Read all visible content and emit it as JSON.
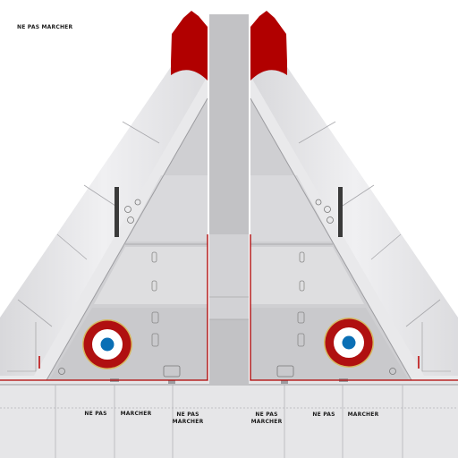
{
  "labels": {
    "corner": "NE PAS MARCHER",
    "left_ne_pas": "NE PAS",
    "left_marcher": "MARCHER",
    "left_block_line1": "NE PAS",
    "left_block_line2": "MARCHER",
    "right_block_line1": "NE PAS",
    "right_block_line2": "MARCHER",
    "right_ne_pas": "NE PAS",
    "right_marcher": "MARCHER"
  },
  "colors": {
    "background": "#ffffff",
    "wing": "#e8e8ea",
    "wing_shade": "#cfcfd2",
    "panel": "#c7c7ca",
    "fuselage": "#c2c2c5",
    "red_tip": "#b10000",
    "roundel_blue": "#0a6fb5",
    "roundel_white": "#ffffff",
    "roundel_red": "#b01010",
    "roundel_rim": "#d6b860",
    "outline_red": "#b00000"
  },
  "icons": [
    "roundel-left",
    "roundel-right"
  ]
}
